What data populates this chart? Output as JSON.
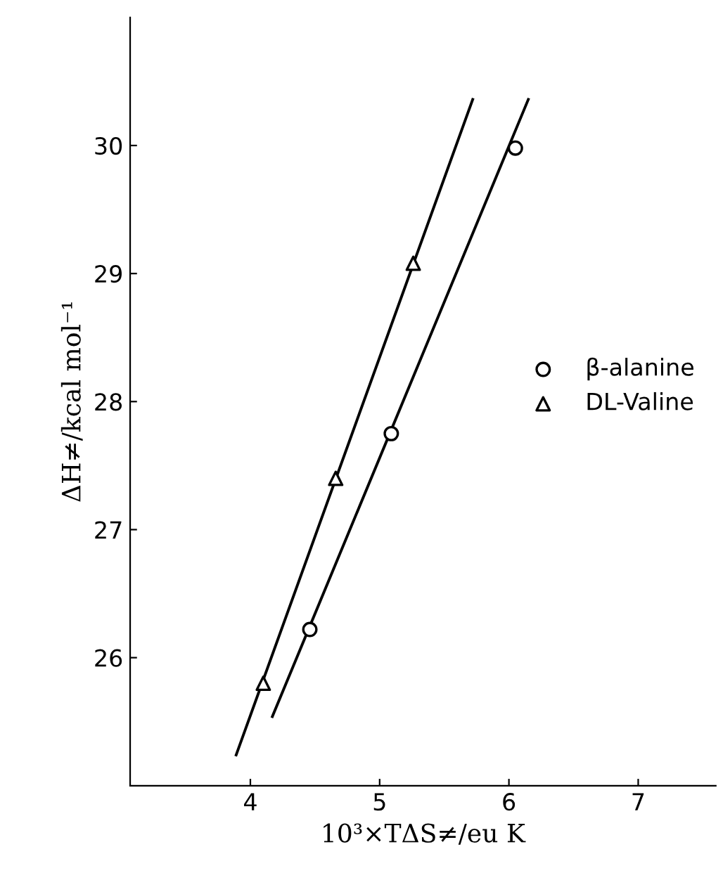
{
  "chart_data": {
    "type": "scatter",
    "xlabel": "10³×TΔS≠/eu K",
    "ylabel": "ΔH≠/kcal mol⁻¹",
    "xlim": [
      3.07,
      7.6
    ],
    "ylim": [
      25.0,
      31.0
    ],
    "xticks": [
      4,
      5,
      6,
      7
    ],
    "yticks": [
      26,
      27,
      28,
      29,
      30
    ],
    "grid": false,
    "legend": "right",
    "series": [
      {
        "name": "β-alanine",
        "color": "#000000",
        "marker": "circle",
        "x": [
          4.46,
          5.09,
          6.05
        ],
        "values": [
          26.22,
          27.75,
          29.98
        ]
      },
      {
        "name": "DL-Valine",
        "color": "#000000",
        "marker": "triangle",
        "x": [
          4.1,
          4.66,
          5.26
        ],
        "values": [
          25.8,
          27.4,
          29.08
        ]
      },
      {
        "type": "line",
        "color": "#000000",
        "marker": "none",
        "x": [
          4.17,
          6.15
        ],
        "values": [
          25.54,
          30.36
        ]
      },
      {
        "type": "line",
        "color": "#000000",
        "marker": "none",
        "x": [
          3.89,
          5.72
        ],
        "values": [
          25.24,
          30.36
        ]
      }
    ]
  }
}
